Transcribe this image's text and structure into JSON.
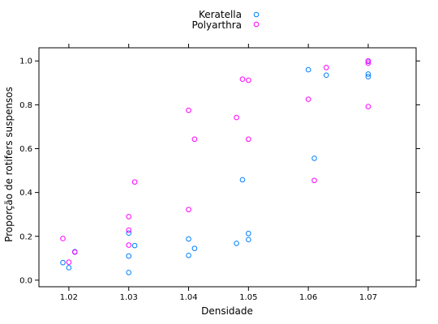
{
  "chart_data": {
    "type": "scatter",
    "xlabel": "Densidade",
    "ylabel": "Proporção de rotifers suspensos",
    "xlim": [
      1.015,
      1.078
    ],
    "ylim": [
      -0.03,
      1.06
    ],
    "xticks": [
      "1.02",
      "1.03",
      "1.04",
      "1.05",
      "1.06",
      "1.07"
    ],
    "yticks": [
      "0.0",
      "0.2",
      "0.4",
      "0.6",
      "0.8",
      "1.0"
    ],
    "legend_position": "top-center",
    "grid": false,
    "series": [
      {
        "name": "Keratella",
        "color": "#0080ff",
        "marker": "open-circle",
        "points": [
          [
            1.019,
            0.08
          ],
          [
            1.02,
            0.057
          ],
          [
            1.021,
            0.13
          ],
          [
            1.03,
            0.035
          ],
          [
            1.03,
            0.11
          ],
          [
            1.03,
            0.215
          ],
          [
            1.031,
            0.158
          ],
          [
            1.04,
            0.113
          ],
          [
            1.04,
            0.188
          ],
          [
            1.041,
            0.145
          ],
          [
            1.048,
            0.168
          ],
          [
            1.049,
            0.458
          ],
          [
            1.05,
            0.185
          ],
          [
            1.05,
            0.213
          ],
          [
            1.06,
            0.96
          ],
          [
            1.061,
            0.556
          ],
          [
            1.063,
            0.935
          ],
          [
            1.07,
            0.928
          ],
          [
            1.07,
            0.94
          ],
          [
            1.07,
            0.998
          ]
        ]
      },
      {
        "name": "Polyarthra",
        "color": "#ff00ff",
        "marker": "open-circle",
        "points": [
          [
            1.019,
            0.19
          ],
          [
            1.02,
            0.082
          ],
          [
            1.021,
            0.128
          ],
          [
            1.03,
            0.29
          ],
          [
            1.03,
            0.228
          ],
          [
            1.03,
            0.16
          ],
          [
            1.031,
            0.448
          ],
          [
            1.04,
            0.775
          ],
          [
            1.04,
            0.322
          ],
          [
            1.041,
            0.643
          ],
          [
            1.048,
            0.742
          ],
          [
            1.049,
            0.917
          ],
          [
            1.05,
            0.912
          ],
          [
            1.05,
            0.643
          ],
          [
            1.06,
            0.825
          ],
          [
            1.061,
            0.455
          ],
          [
            1.063,
            0.97
          ],
          [
            1.07,
            0.792
          ],
          [
            1.07,
            0.99
          ],
          [
            1.07,
            1.0
          ]
        ]
      }
    ]
  }
}
